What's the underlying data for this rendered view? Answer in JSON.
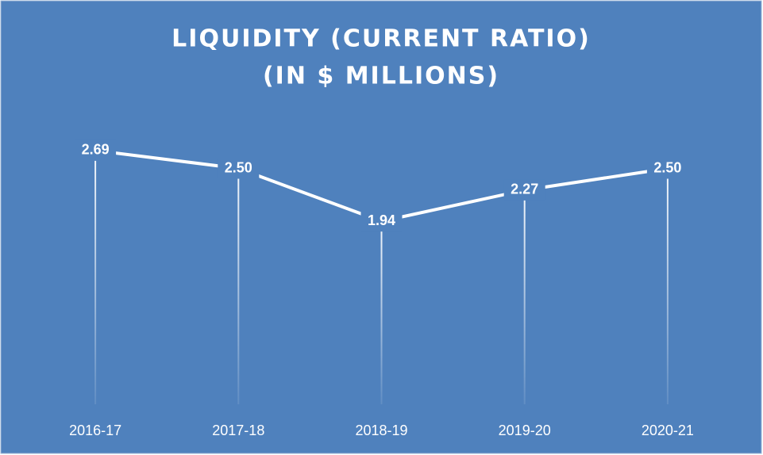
{
  "chart_data": {
    "type": "line",
    "title": [
      "LIQUIDITY (CURRENT RATIO)",
      "(IN $ MILLIONS)"
    ],
    "categories": [
      "2016-17",
      "2017-18",
      "2018-19",
      "2019-20",
      "2020-21"
    ],
    "values": [
      2.69,
      2.5,
      1.94,
      2.27,
      2.5
    ],
    "value_labels": [
      "2.69",
      "2.50",
      "1.94",
      "2.27",
      "2.50"
    ],
    "color": "#ffffff",
    "ylim": [
      0,
      3
    ],
    "drop_lines": true
  }
}
